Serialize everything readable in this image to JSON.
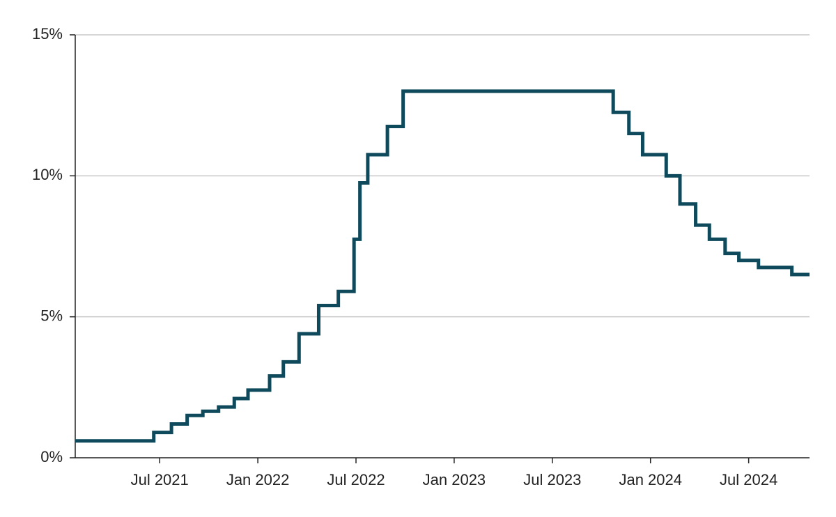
{
  "chart_data": {
    "type": "line",
    "step": true,
    "x": [
      2021.07,
      2021.47,
      2021.56,
      2021.64,
      2021.72,
      2021.8,
      2021.88,
      2021.95,
      2022.06,
      2022.13,
      2022.21,
      2022.31,
      2022.41,
      2022.49,
      2022.52,
      2022.56,
      2022.66,
      2022.74,
      2023.81,
      2023.89,
      2023.96,
      2024.08,
      2024.15,
      2024.23,
      2024.3,
      2024.38,
      2024.45,
      2024.55,
      2024.72,
      2024.81
    ],
    "values": [
      0.6,
      0.9,
      1.2,
      1.5,
      1.65,
      1.8,
      2.1,
      2.4,
      2.9,
      3.4,
      4.4,
      5.4,
      5.9,
      7.75,
      9.75,
      10.75,
      11.75,
      13,
      12.25,
      11.5,
      10.75,
      10,
      9,
      8.25,
      7.75,
      7.25,
      7,
      6.75,
      6.5,
      6.5
    ],
    "color": "#0e4a5b",
    "xlim": [
      2021.07,
      2024.81
    ],
    "xticks": [
      {
        "value": 2021.5,
        "label": "Jul 2021"
      },
      {
        "value": 2022.0,
        "label": "Jan 2022"
      },
      {
        "value": 2022.5,
        "label": "Jul 2022"
      },
      {
        "value": 2023.0,
        "label": "Jan 2023"
      },
      {
        "value": 2023.5,
        "label": "Jul 2023"
      },
      {
        "value": 2024.0,
        "label": "Jan 2024"
      },
      {
        "value": 2024.5,
        "label": "Jul 2024"
      }
    ],
    "ylim": [
      0,
      15
    ],
    "yticks": [
      {
        "value": 0,
        "label": "0%"
      },
      {
        "value": 5,
        "label": "5%"
      },
      {
        "value": 10,
        "label": "10%"
      },
      {
        "value": 15,
        "label": "15%"
      }
    ],
    "grid": true
  }
}
